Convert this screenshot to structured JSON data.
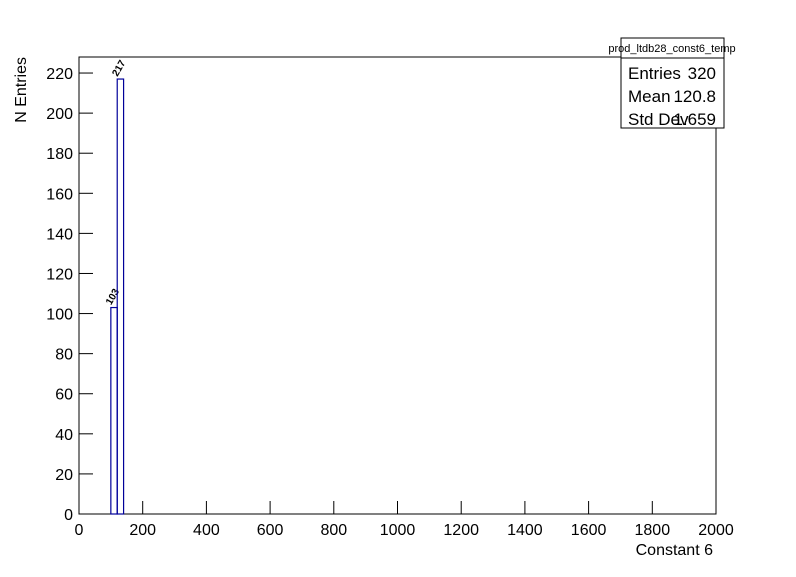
{
  "chart_data": {
    "type": "histogram",
    "x_label": "Constant 6",
    "y_label": "N Entries",
    "bins": [
      100,
      120,
      140
    ],
    "values": [
      103,
      217
    ],
    "color": "#000099",
    "xlim": [
      0,
      2000
    ],
    "xticks": [
      0,
      200,
      400,
      600,
      800,
      1000,
      1200,
      1400,
      1600,
      1800,
      2000
    ],
    "ylim": [
      0,
      228
    ],
    "yticks": [
      0,
      20,
      40,
      60,
      80,
      100,
      120,
      140,
      160,
      180,
      200,
      220
    ],
    "stats": {
      "title": "prod_ltdb28_const6_temp",
      "rows": [
        [
          "Entries",
          320
        ],
        [
          "Mean",
          120.8
        ],
        [
          "Std Dev",
          1.659
        ]
      ]
    }
  }
}
